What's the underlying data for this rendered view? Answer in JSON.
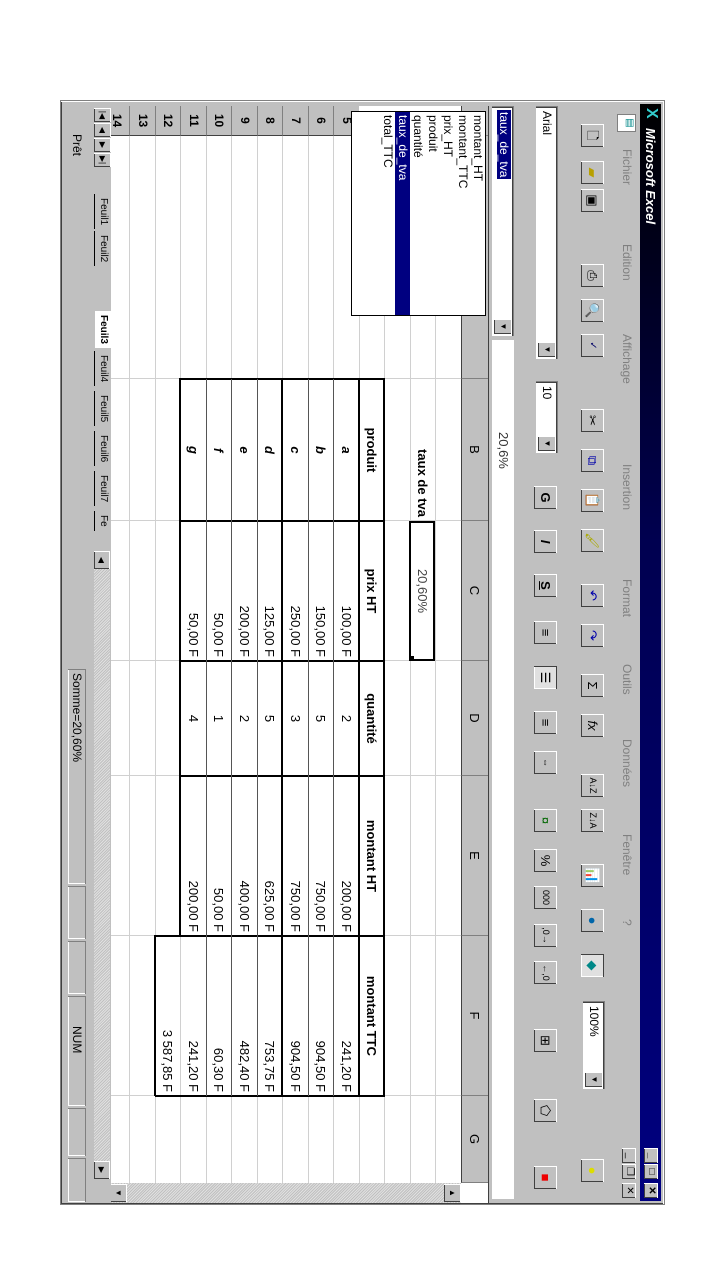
{
  "window": {
    "title": "Microsoft Excel",
    "colors": {
      "title_start": "#000000",
      "title_end": "#000080",
      "selection": "#000080"
    }
  },
  "menu": [
    "Fichier",
    "Edition",
    "Affichage",
    "Insertion",
    "Format",
    "Outils",
    "Données",
    "Fenêtre",
    "?"
  ],
  "toolbar": {
    "zoom": "100%"
  },
  "format_toolbar": {
    "font": "Arial",
    "size": "10",
    "bold": "G",
    "italic": "I",
    "underline": "S",
    "percent": "%",
    "thousands": "000"
  },
  "formula_bar": {
    "name_box": "taux_de_tva",
    "value": "20,6%"
  },
  "name_dropdown": {
    "items": [
      "montant_HT",
      "montant_TTC",
      "prix_HT",
      "produit",
      "quantité",
      "taux_de_tva",
      "total_TTC"
    ],
    "selected": "taux_de_tva"
  },
  "sheet": {
    "columns": [
      "B",
      "C",
      "D",
      "E",
      "F",
      "G"
    ],
    "rows": [
      "5",
      "6",
      "7",
      "8",
      "9",
      "10",
      "11",
      "12",
      "13",
      "14"
    ],
    "tax_label": "taux de tva",
    "tax_value": "20,60%",
    "headers": [
      "produit",
      "prix HT",
      "quantité",
      "montant HT",
      "montant TTC"
    ],
    "data": [
      [
        "a",
        "100,00 F",
        "2",
        "200,00 F",
        "241,20 F"
      ],
      [
        "b",
        "150,00 F",
        "5",
        "750,00 F",
        "904,50 F"
      ],
      [
        "c",
        "250,00 F",
        "3",
        "750,00 F",
        "904,50 F"
      ],
      [
        "d",
        "125,00 F",
        "5",
        "625,00 F",
        "753,75 F"
      ],
      [
        "e",
        "200,00 F",
        "2",
        "400,00 F",
        "482,40 F"
      ],
      [
        "f",
        "50,00 F",
        "1",
        "50,00 F",
        "60,30 F"
      ],
      [
        "g",
        "50,00 F",
        "4",
        "200,00 F",
        "241,20 F"
      ]
    ],
    "total": "3 587,85 F"
  },
  "sheet_tabs": {
    "items": [
      "Feuil1",
      "Feuil2",
      "Feuil3",
      "Feuil4",
      "Feuil5",
      "Feuil6",
      "Feuil7",
      "Fe"
    ],
    "active": "Feuil3"
  },
  "status": {
    "ready": "Prêt",
    "sum": "Somme=20,60%",
    "num": "NUM"
  }
}
